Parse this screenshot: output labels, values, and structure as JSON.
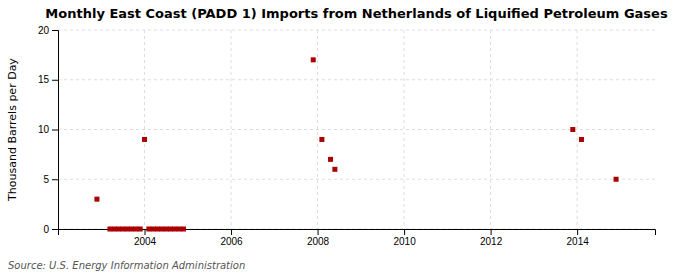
{
  "chart_data": {
    "type": "scatter",
    "title": "Monthly East Coast (PADD 1) Imports from Netherlands of Liquified Petroleum Gases",
    "ylabel": "Thousand Barrels per Day",
    "annotations": [
      "Source: U.S. Energy Information Administration"
    ],
    "x": [
      2002.9,
      2003.2,
      2003.3,
      2003.4,
      2003.5,
      2003.6,
      2003.7,
      2003.8,
      2003.9,
      2004.0,
      2004.1,
      2004.2,
      2004.3,
      2004.4,
      2004.5,
      2004.6,
      2004.7,
      2004.8,
      2004.9,
      2007.9,
      2008.1,
      2008.3,
      2008.4,
      2013.9,
      2014.1,
      2014.9
    ],
    "values": [
      3.0,
      0.0,
      0.0,
      0.0,
      0.0,
      0.0,
      0.0,
      0.0,
      0.0,
      9.0,
      0.0,
      0.0,
      0.0,
      0.0,
      0.0,
      0.0,
      0.0,
      0.0,
      0.0,
      17.0,
      9.0,
      7.0,
      6.0,
      10.0,
      9.0,
      5.0
    ],
    "color": "#aa0000",
    "marker": "square",
    "xlim": [
      2002.0,
      2015.8
    ],
    "ylim": [
      0,
      20
    ],
    "xticks": [
      2004,
      2006,
      2008,
      2010,
      2012,
      2014
    ],
    "yticks": [
      0,
      5,
      10,
      15,
      20
    ],
    "grid": true
  }
}
